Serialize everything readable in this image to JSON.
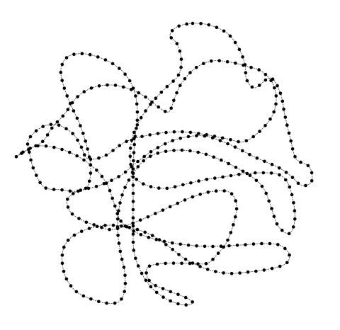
{
  "diagram": {
    "kind": "knotted-polymer-chain",
    "closed_loop": true,
    "colors": {
      "background": "#ffffff",
      "edge": "#3a3a3a",
      "vertex": "#000000"
    },
    "icons": {
      "vertex": "filled-circle-dot"
    },
    "visible_text": []
  }
}
